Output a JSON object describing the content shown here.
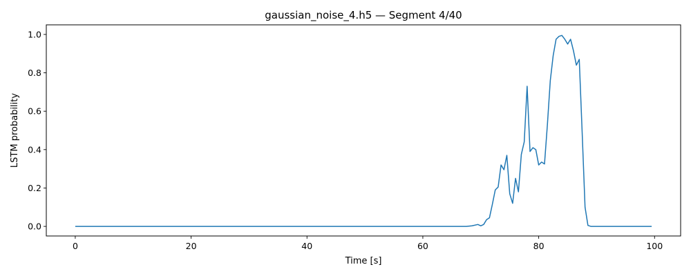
{
  "chart_data": {
    "type": "line",
    "title": "gaussian_noise_4.h5 — Segment 4/40",
    "xlabel": "Time [s]",
    "ylabel": "LSTM probability",
    "xlim": [
      -5,
      104.5
    ],
    "ylim": [
      -0.05,
      1.05
    ],
    "xticks": [
      0,
      20,
      40,
      60,
      80,
      100
    ],
    "xtick_labels": [
      "0",
      "20",
      "40",
      "60",
      "80",
      "100"
    ],
    "yticks": [
      0.0,
      0.2,
      0.4,
      0.6,
      0.8,
      1.0
    ],
    "ytick_labels": [
      "0.0",
      "0.2",
      "0.4",
      "0.6",
      "0.8",
      "1.0"
    ],
    "grid": false,
    "series": [
      {
        "color": "#1f77b4",
        "x": [
          0,
          5,
          10,
          20,
          30,
          40,
          50,
          60,
          67.5,
          68.5,
          69.5,
          70.0,
          70.5,
          71.0,
          71.5,
          72.0,
          72.5,
          73.0,
          73.5,
          74.0,
          74.5,
          75.0,
          75.5,
          76.0,
          76.5,
          77.0,
          77.5,
          78.0,
          78.5,
          79.0,
          79.5,
          80.0,
          80.5,
          81.0,
          81.5,
          82.0,
          82.5,
          83.0,
          83.5,
          84.0,
          84.5,
          85.0,
          85.5,
          86.0,
          86.5,
          87.0,
          87.5,
          88.0,
          88.5,
          89.0,
          90,
          95,
          99.5
        ],
        "y": [
          0,
          0,
          0,
          0,
          0,
          0,
          0,
          0,
          0,
          0.003,
          0.01,
          0.003,
          0.01,
          0.035,
          0.045,
          0.115,
          0.19,
          0.205,
          0.32,
          0.295,
          0.37,
          0.17,
          0.12,
          0.25,
          0.18,
          0.375,
          0.44,
          0.73,
          0.39,
          0.41,
          0.4,
          0.32,
          0.335,
          0.325,
          0.53,
          0.76,
          0.89,
          0.975,
          0.99,
          0.995,
          0.975,
          0.95,
          0.975,
          0.915,
          0.84,
          0.87,
          0.49,
          0.1,
          0.005,
          0,
          0,
          0,
          0
        ]
      }
    ]
  }
}
